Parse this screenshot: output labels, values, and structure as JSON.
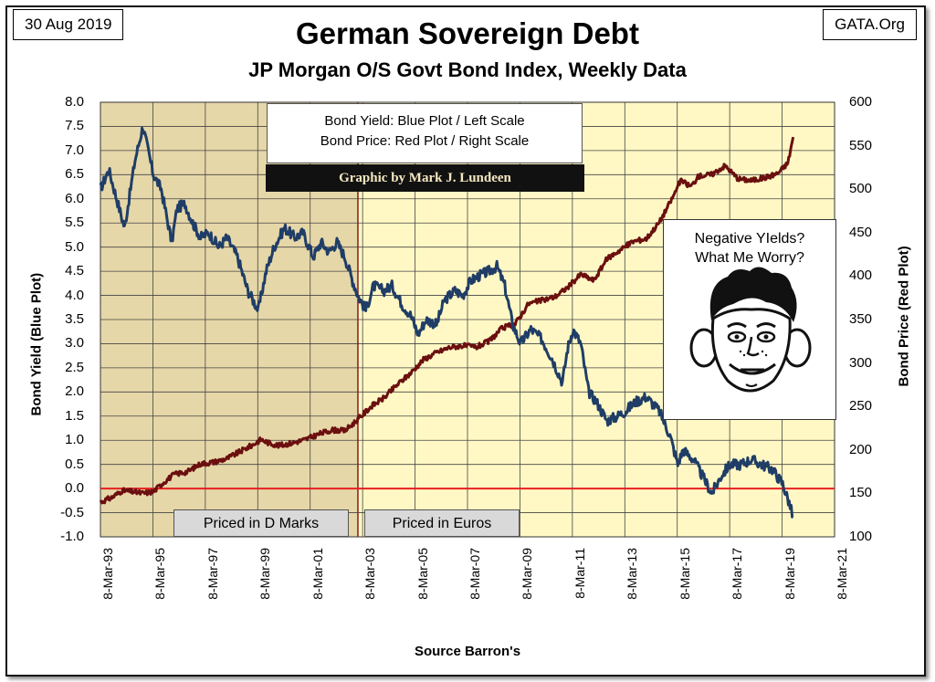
{
  "header": {
    "date": "30 Aug 2019",
    "site": "GATA.Org",
    "title": "German Sovereign Debt",
    "subtitle": "JP Morgan O/S Govt Bond Index, Weekly Data"
  },
  "legend": {
    "line1": "Bond Yield: Blue Plot / Left Scale",
    "line2": "Bond Price: Red Plot / Right Scale",
    "byline": "Graphic by Mark J. Lundeen"
  },
  "callout": {
    "line1": "Negative YIelds?",
    "line2": "What Me Worry?"
  },
  "tags": {
    "dmarks": "Priced in D Marks",
    "euros": "Priced in Euros"
  },
  "source": "Source Barron's",
  "colors": {
    "yield": "#1f3d66",
    "price": "#6b0f0f",
    "zero_line": "#e52020",
    "dm_band": "#e6d7a8",
    "euro_band": "#fff8c4",
    "divider": "#8b1a1a"
  },
  "chart_data": {
    "type": "line",
    "title": "German Sovereign Debt",
    "subtitle": "JP Morgan O/S Govt Bond Index, Weekly Data",
    "xlabel": "Source Barron's",
    "ylabel_left": "Bond  Yield   (Blue Plot)",
    "ylabel_right": "Bond  Price   (Red Plot)",
    "xlim": [
      1993.18,
      2021.18
    ],
    "ylim_left": [
      -1.0,
      8.0
    ],
    "ylim_right": [
      100,
      600
    ],
    "x_tick_labels": [
      "8-Mar-93",
      "8-Mar-95",
      "8-Mar-97",
      "8-Mar-99",
      "8-Mar-01",
      "8-Mar-03",
      "8-Mar-05",
      "8-Mar-07",
      "8-Mar-09",
      "8-Mar-11",
      "8-Mar-13",
      "8-Mar-15",
      "8-Mar-17",
      "8-Mar-19",
      "8-Mar-21"
    ],
    "y_left_tick_labels": [
      "8.0",
      "7.5",
      "7.0",
      "6.5",
      "6.0",
      "5.5",
      "5.0",
      "4.5",
      "4.0",
      "3.5",
      "3.0",
      "2.5",
      "2.0",
      "1.5",
      "1.0",
      "0.5",
      "0.0",
      "-0.5",
      "-1.0"
    ],
    "y_right_tick_labels": [
      "600",
      "550",
      "500",
      "450",
      "400",
      "350",
      "300",
      "250",
      "200",
      "150",
      "100"
    ],
    "grid": true,
    "reference_line": {
      "axis": "left",
      "y": 0.0
    },
    "shaded_regions": [
      {
        "from": 1993.18,
        "to": 2003.0,
        "label": "Priced in D Marks"
      },
      {
        "from": 2003.0,
        "to": 2021.18,
        "label": "Priced in Euros"
      }
    ],
    "series": [
      {
        "name": "Bond Yield",
        "axis": "left",
        "x": [
          1993.18,
          1993.5,
          1993.8,
          1994.1,
          1994.5,
          1994.8,
          1995.0,
          1995.2,
          1995.5,
          1995.9,
          1996.1,
          1996.4,
          1996.7,
          1997.0,
          1997.3,
          1997.7,
          1998.0,
          1998.4,
          1998.8,
          1999.0,
          1999.2,
          1999.5,
          1999.8,
          2000.2,
          2000.6,
          2000.9,
          2001.3,
          2001.6,
          2001.9,
          2002.2,
          2002.5,
          2002.8,
          2003.0,
          2003.3,
          2003.6,
          2004.0,
          2004.3,
          2004.7,
          2005.0,
          2005.3,
          2005.6,
          2006.0,
          2006.3,
          2006.7,
          2007.0,
          2007.3,
          2007.6,
          2008.0,
          2008.3,
          2008.6,
          2008.9,
          2009.2,
          2009.6,
          2010.0,
          2010.4,
          2010.8,
          2011.0,
          2011.2,
          2011.5,
          2011.8,
          2012.1,
          2012.5,
          2012.9,
          2013.2,
          2013.6,
          2014.0,
          2014.5,
          2014.9,
          2015.2,
          2015.4,
          2015.8,
          2016.2,
          2016.5,
          2016.9,
          2017.2,
          2017.6,
          2018.0,
          2018.4,
          2018.8,
          2019.2,
          2019.45,
          2019.6
        ],
        "y": [
          6.2,
          6.6,
          6.0,
          5.4,
          6.8,
          7.5,
          7.0,
          6.5,
          6.2,
          5.1,
          5.8,
          5.9,
          5.5,
          5.2,
          5.3,
          5.0,
          5.2,
          4.8,
          4.1,
          3.9,
          3.7,
          4.5,
          5.0,
          5.4,
          5.2,
          5.3,
          4.8,
          5.1,
          4.9,
          5.1,
          4.8,
          4.3,
          4.0,
          3.7,
          4.2,
          4.1,
          4.2,
          3.8,
          3.6,
          3.2,
          3.5,
          3.4,
          3.9,
          4.1,
          4.0,
          4.3,
          4.4,
          4.5,
          4.6,
          4.2,
          3.4,
          3.0,
          3.3,
          3.1,
          2.7,
          2.2,
          2.9,
          3.3,
          3.0,
          2.0,
          1.8,
          1.4,
          1.5,
          1.6,
          1.8,
          1.9,
          1.6,
          1.1,
          0.5,
          0.8,
          0.6,
          0.2,
          -0.1,
          0.3,
          0.5,
          0.5,
          0.6,
          0.5,
          0.4,
          0.1,
          -0.3,
          -0.6
        ]
      },
      {
        "name": "Bond Price",
        "axis": "right",
        "x": [
          1993.18,
          1993.6,
          1994.0,
          1994.4,
          1994.8,
          1995.2,
          1995.6,
          1996.0,
          1996.5,
          1997.0,
          1997.5,
          1998.0,
          1998.5,
          1999.0,
          1999.3,
          1999.6,
          2000.0,
          2000.5,
          2001.0,
          2001.5,
          2002.0,
          2002.5,
          2003.0,
          2003.5,
          2004.0,
          2004.5,
          2005.0,
          2005.5,
          2006.0,
          2006.5,
          2007.0,
          2007.5,
          2008.0,
          2008.5,
          2009.0,
          2009.5,
          2010.0,
          2010.5,
          2011.0,
          2011.5,
          2012.0,
          2012.5,
          2013.0,
          2013.5,
          2014.0,
          2014.5,
          2015.0,
          2015.3,
          2015.7,
          2016.0,
          2016.5,
          2017.0,
          2017.5,
          2018.0,
          2018.5,
          2019.0,
          2019.4,
          2019.6
        ],
        "y": [
          140,
          145,
          153,
          152,
          150,
          152,
          163,
          172,
          175,
          184,
          186,
          190,
          198,
          206,
          212,
          208,
          205,
          208,
          212,
          218,
          223,
          222,
          235,
          250,
          260,
          275,
          288,
          304,
          312,
          318,
          320,
          318,
          325,
          340,
          345,
          368,
          372,
          376,
          387,
          402,
          395,
          420,
          430,
          440,
          443,
          462,
          490,
          510,
          503,
          515,
          517,
          527,
          512,
          510,
          513,
          518,
          530,
          560
        ]
      }
    ]
  }
}
